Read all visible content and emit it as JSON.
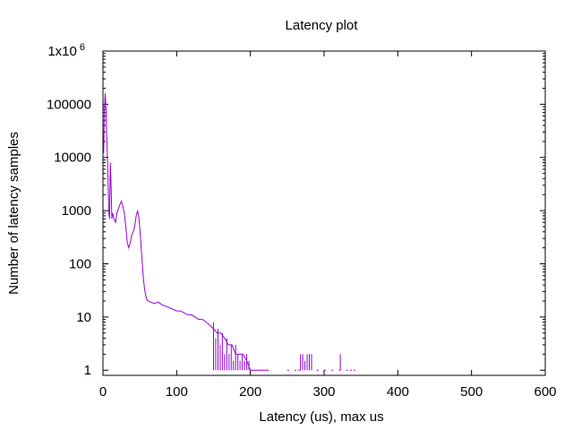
{
  "chart_data": {
    "type": "line",
    "title": "Latency plot",
    "xlabel": "Latency (us), max  us",
    "ylabel": "Number of latency samples",
    "xlim": [
      0,
      600
    ],
    "ylim": [
      0.8,
      1000000
    ],
    "y_scale": "log",
    "grid": false,
    "legend": "none",
    "x_ticks": [
      {
        "v": 0,
        "label": "0"
      },
      {
        "v": 100,
        "label": "100"
      },
      {
        "v": 200,
        "label": "200"
      },
      {
        "v": 300,
        "label": "300"
      },
      {
        "v": 400,
        "label": "400"
      },
      {
        "v": 500,
        "label": "500"
      },
      {
        "v": 600,
        "label": "600"
      }
    ],
    "y_ticks": [
      {
        "v": 1,
        "label": "1"
      },
      {
        "v": 10,
        "label": "10"
      },
      {
        "v": 100,
        "label": "100"
      },
      {
        "v": 1000,
        "label": "1000"
      },
      {
        "v": 10000,
        "label": "10000"
      },
      {
        "v": 100000,
        "label": "100000"
      },
      {
        "v": 1000000,
        "label": "1x10",
        "sup": "6"
      }
    ],
    "series": [
      {
        "color": "#9400d3",
        "points": [
          [
            1,
            12000
          ],
          [
            2,
            80000
          ],
          [
            3,
            160000
          ],
          [
            4,
            90000
          ],
          [
            5,
            30000
          ],
          [
            6,
            12000
          ],
          [
            7,
            3000
          ],
          [
            8,
            900
          ],
          [
            9,
            700
          ],
          [
            10,
            8000
          ],
          [
            11,
            3000
          ],
          [
            12,
            700
          ],
          [
            13,
            900
          ],
          [
            15,
            700
          ],
          [
            17,
            600
          ],
          [
            19,
            900
          ],
          [
            21,
            1100
          ],
          [
            23,
            1300
          ],
          [
            25,
            1500
          ],
          [
            27,
            1200
          ],
          [
            29,
            900
          ],
          [
            31,
            500
          ],
          [
            33,
            250
          ],
          [
            35,
            200
          ],
          [
            37,
            250
          ],
          [
            39,
            350
          ],
          [
            41,
            400
          ],
          [
            43,
            500
          ],
          [
            45,
            800
          ],
          [
            47,
            1000
          ],
          [
            49,
            700
          ],
          [
            51,
            300
          ],
          [
            53,
            120
          ],
          [
            55,
            50
          ],
          [
            57,
            30
          ],
          [
            59,
            22
          ],
          [
            61,
            20
          ],
          [
            65,
            19
          ],
          [
            70,
            18
          ],
          [
            75,
            19
          ],
          [
            80,
            17
          ],
          [
            85,
            16
          ],
          [
            90,
            15
          ],
          [
            95,
            14
          ],
          [
            100,
            13
          ],
          [
            105,
            13
          ],
          [
            110,
            12
          ],
          [
            115,
            11
          ],
          [
            120,
            11
          ],
          [
            125,
            10
          ],
          [
            130,
            9
          ],
          [
            135,
            9
          ],
          [
            140,
            8
          ],
          [
            145,
            7
          ],
          [
            150,
            6
          ],
          [
            155,
            5
          ],
          [
            160,
            5
          ],
          [
            165,
            4
          ],
          [
            170,
            3
          ],
          [
            175,
            3
          ],
          [
            180,
            2
          ],
          [
            185,
            2
          ],
          [
            190,
            2
          ],
          [
            195,
            1.5
          ],
          [
            200,
            1
          ],
          [
            205,
            1
          ],
          [
            210,
            1
          ],
          [
            215,
            1
          ],
          [
            220,
            1
          ],
          [
            225,
            1
          ]
        ],
        "spikes": [
          [
            150,
            8
          ],
          [
            153,
            4
          ],
          [
            156,
            6
          ],
          [
            159,
            3
          ],
          [
            162,
            5
          ],
          [
            165,
            2
          ],
          [
            168,
            4
          ],
          [
            171,
            2
          ],
          [
            174,
            3
          ],
          [
            177,
            1.5
          ],
          [
            180,
            3
          ],
          [
            183,
            2
          ],
          [
            186,
            1.5
          ],
          [
            189,
            2
          ],
          [
            192,
            1.5
          ],
          [
            195,
            2
          ],
          [
            198,
            1.5
          ],
          [
            268,
            2
          ],
          [
            271,
            2
          ],
          [
            274,
            1.5
          ],
          [
            277,
            2
          ],
          [
            280,
            2
          ],
          [
            283,
            2
          ],
          [
            322,
            2
          ]
        ],
        "dots": [
          250,
          260,
          265,
          290,
          300,
          310,
          320,
          330,
          335,
          340
        ]
      }
    ]
  }
}
